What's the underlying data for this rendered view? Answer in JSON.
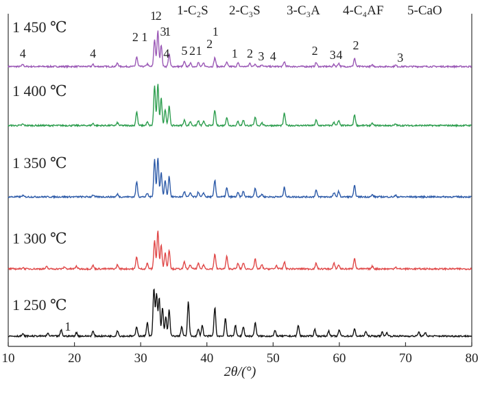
{
  "chart_data": {
    "type": "line",
    "title": "",
    "xlabel": "2θ/(°)",
    "ylabel": "",
    "xlim": [
      10,
      80
    ],
    "x_ticks": [
      10,
      20,
      30,
      40,
      50,
      60,
      70,
      80
    ],
    "legend": {
      "placement": "top-right",
      "entries": [
        "1-C₂S",
        "2-C₃S",
        "3-C₃A",
        "4-C₄AF",
        "5-CaO"
      ]
    },
    "series": [
      {
        "name": "1 450 ℃",
        "color": "#9b59b6",
        "peaks": [
          [
            12.2,
            3
          ],
          [
            22.8,
            3
          ],
          [
            26.5,
            5
          ],
          [
            29.4,
            14
          ],
          [
            31.0,
            4
          ],
          [
            32.1,
            40
          ],
          [
            32.6,
            52
          ],
          [
            33.1,
            32
          ],
          [
            34.3,
            18
          ],
          [
            36.6,
            7
          ],
          [
            37.5,
            5
          ],
          [
            38.7,
            6
          ],
          [
            39.5,
            5
          ],
          [
            41.2,
            13
          ],
          [
            43.0,
            6
          ],
          [
            44.7,
            5
          ],
          [
            46.5,
            5
          ],
          [
            47.3,
            4
          ],
          [
            48.3,
            3
          ],
          [
            51.7,
            7
          ],
          [
            56.5,
            6
          ],
          [
            59.2,
            3
          ],
          [
            59.9,
            5
          ],
          [
            62.3,
            12
          ],
          [
            65.0,
            2
          ],
          [
            68.5,
            2
          ]
        ],
        "peak_labels": [
          {
            "x": 12.2,
            "text": "4"
          },
          {
            "x": 22.8,
            "text": "4"
          },
          {
            "x": 29.2,
            "text": "2"
          },
          {
            "x": 30.6,
            "text": "1"
          },
          {
            "x": 31.9,
            "text": "1"
          },
          {
            "x": 32.7,
            "text": "2"
          },
          {
            "x": 33.4,
            "text": "3"
          },
          {
            "x": 34.1,
            "text": "1"
          },
          {
            "x": 33.9,
            "text": "4"
          },
          {
            "x": 36.6,
            "text": "5"
          },
          {
            "x": 37.8,
            "text": "2"
          },
          {
            "x": 38.8,
            "text": "1"
          },
          {
            "x": 40.4,
            "text": "2"
          },
          {
            "x": 41.3,
            "text": "1"
          },
          {
            "x": 44.2,
            "text": "1"
          },
          {
            "x": 46.5,
            "text": "2"
          },
          {
            "x": 48.2,
            "text": "3"
          },
          {
            "x": 50.0,
            "text": "4"
          },
          {
            "x": 56.3,
            "text": "2"
          },
          {
            "x": 59.0,
            "text": "3"
          },
          {
            "x": 60.0,
            "text": "4"
          },
          {
            "x": 62.5,
            "text": "2"
          },
          {
            "x": 69.2,
            "text": "3"
          }
        ]
      },
      {
        "name": "1 400 ℃",
        "color": "#2e9e4f",
        "peaks": [
          [
            12.2,
            2
          ],
          [
            22.8,
            3
          ],
          [
            26.5,
            4
          ],
          [
            29.4,
            20
          ],
          [
            31.0,
            5
          ],
          [
            32.1,
            58
          ],
          [
            32.6,
            60
          ],
          [
            33.1,
            40
          ],
          [
            33.7,
            24
          ],
          [
            34.3,
            28
          ],
          [
            36.6,
            8
          ],
          [
            37.5,
            6
          ],
          [
            38.7,
            7
          ],
          [
            39.5,
            6
          ],
          [
            41.2,
            22
          ],
          [
            43.0,
            12
          ],
          [
            44.7,
            6
          ],
          [
            45.5,
            8
          ],
          [
            47.3,
            12
          ],
          [
            48.3,
            4
          ],
          [
            51.7,
            18
          ],
          [
            56.5,
            8
          ],
          [
            59.2,
            5
          ],
          [
            59.9,
            7
          ],
          [
            62.3,
            16
          ],
          [
            65.0,
            3
          ],
          [
            68.5,
            2
          ]
        ],
        "peak_labels": []
      },
      {
        "name": "1 350 ℃",
        "color": "#2c5aa8",
        "peaks": [
          [
            12.2,
            2
          ],
          [
            22.8,
            3
          ],
          [
            26.5,
            4
          ],
          [
            29.4,
            22
          ],
          [
            31.0,
            5
          ],
          [
            32.1,
            55
          ],
          [
            32.6,
            58
          ],
          [
            33.1,
            36
          ],
          [
            33.7,
            24
          ],
          [
            34.3,
            30
          ],
          [
            36.6,
            8
          ],
          [
            37.5,
            6
          ],
          [
            38.7,
            7
          ],
          [
            39.5,
            6
          ],
          [
            41.2,
            24
          ],
          [
            43.0,
            13
          ],
          [
            44.7,
            6
          ],
          [
            45.5,
            8
          ],
          [
            47.3,
            13
          ],
          [
            48.3,
            4
          ],
          [
            51.7,
            14
          ],
          [
            56.5,
            10
          ],
          [
            59.2,
            6
          ],
          [
            59.9,
            8
          ],
          [
            62.3,
            16
          ],
          [
            65.0,
            3
          ],
          [
            68.5,
            2
          ]
        ],
        "peak_labels": []
      },
      {
        "name": "1 300 ℃",
        "color": "#e04848",
        "peaks": [
          [
            12.2,
            2
          ],
          [
            15.8,
            3
          ],
          [
            18.5,
            3
          ],
          [
            20.3,
            4
          ],
          [
            22.8,
            5
          ],
          [
            26.5,
            6
          ],
          [
            29.4,
            18
          ],
          [
            31.0,
            8
          ],
          [
            32.1,
            42
          ],
          [
            32.6,
            56
          ],
          [
            33.1,
            36
          ],
          [
            33.7,
            24
          ],
          [
            34.3,
            28
          ],
          [
            36.6,
            10
          ],
          [
            37.5,
            6
          ],
          [
            38.7,
            8
          ],
          [
            39.5,
            6
          ],
          [
            41.2,
            22
          ],
          [
            43.0,
            18
          ],
          [
            44.7,
            8
          ],
          [
            45.5,
            9
          ],
          [
            47.3,
            14
          ],
          [
            48.3,
            6
          ],
          [
            50.5,
            5
          ],
          [
            51.7,
            10
          ],
          [
            56.5,
            8
          ],
          [
            59.2,
            8
          ],
          [
            59.9,
            6
          ],
          [
            62.3,
            16
          ],
          [
            65.0,
            4
          ],
          [
            68.5,
            3
          ]
        ],
        "peak_labels": []
      },
      {
        "name": "1 250 ℃",
        "color": "#111111",
        "peaks": [
          [
            12.2,
            3
          ],
          [
            16.0,
            4
          ],
          [
            18.0,
            9
          ],
          [
            20.3,
            5
          ],
          [
            22.8,
            7
          ],
          [
            26.5,
            8
          ],
          [
            29.4,
            14
          ],
          [
            31.0,
            20
          ],
          [
            32.0,
            70
          ],
          [
            32.4,
            62
          ],
          [
            32.8,
            56
          ],
          [
            33.3,
            42
          ],
          [
            33.8,
            28
          ],
          [
            34.3,
            38
          ],
          [
            36.2,
            14
          ],
          [
            37.2,
            50
          ],
          [
            38.7,
            10
          ],
          [
            39.3,
            16
          ],
          [
            41.2,
            42
          ],
          [
            42.8,
            26
          ],
          [
            44.3,
            16
          ],
          [
            45.5,
            14
          ],
          [
            47.3,
            20
          ],
          [
            50.3,
            8
          ],
          [
            53.8,
            16
          ],
          [
            56.3,
            10
          ],
          [
            58.4,
            8
          ],
          [
            60.0,
            9
          ],
          [
            62.3,
            10
          ],
          [
            64.0,
            7
          ],
          [
            66.5,
            6
          ],
          [
            67.2,
            5
          ],
          [
            72.0,
            6
          ],
          [
            73.0,
            5
          ]
        ],
        "peak_labels": [
          {
            "x": 19.0,
            "text": "1"
          }
        ]
      }
    ]
  }
}
